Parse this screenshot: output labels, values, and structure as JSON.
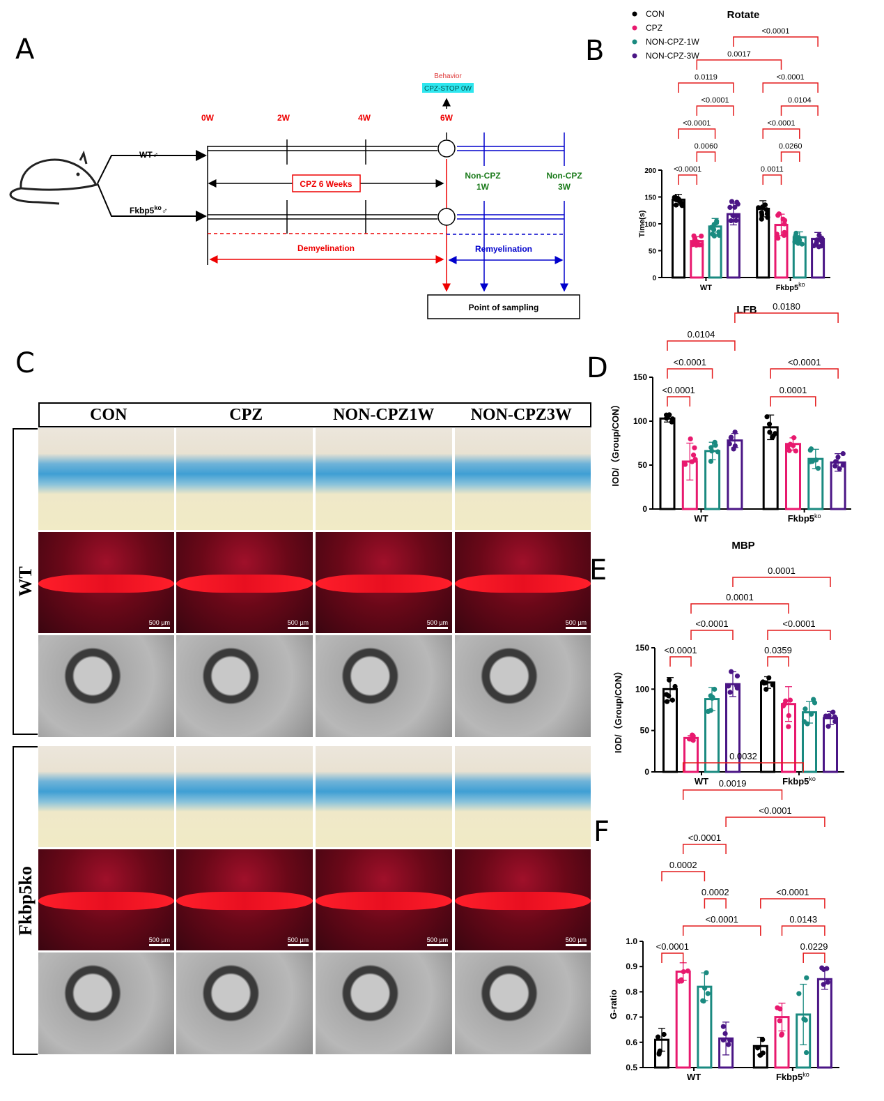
{
  "panel_letters": [
    "A",
    "B",
    "C",
    "D",
    "E",
    "F"
  ],
  "diagram_a": {
    "time_labels": [
      "0W",
      "2W",
      "4W",
      "6W"
    ],
    "behavior": "Behavior",
    "cpz_stop": "CPZ-STOP 0W",
    "group_wt": "WT♂",
    "group_ko": "Fkbp5",
    "group_ko_sup": "ko",
    "group_ko_sym": "♂",
    "cpz_box": "CPZ 6 Weeks",
    "non_cpz_1w": [
      "Non-CPZ",
      "1W"
    ],
    "non_cpz_3w": [
      "Non-CPZ",
      "3W"
    ],
    "demyelination": "Demyelination",
    "remyelination": "Remyelination",
    "sampling": "Point of sampling"
  },
  "panel_c": {
    "columns": [
      "CON",
      "CPZ",
      "NON-CPZ1W",
      "NON-CPZ3W"
    ],
    "rows": [
      "WT",
      "Fkbp5ko"
    ],
    "scale_bar": "500 µm"
  },
  "legend": {
    "items": [
      {
        "label": "CON",
        "color": "#000000"
      },
      {
        "label": "CPZ",
        "color": "#e8196e"
      },
      {
        "label": "NON-CPZ-1W",
        "color": "#1a8a80"
      },
      {
        "label": "NON-CPZ-3W",
        "color": "#4a1585"
      }
    ]
  },
  "chart_data": [
    {
      "type": "bar",
      "title": "Rotate",
      "ylabel": "Time(s)",
      "ylim": [
        0,
        200
      ],
      "yticks": [
        0,
        50,
        100,
        150,
        200
      ],
      "categories": [
        "WT",
        "Fkbp5ko"
      ],
      "category_sup": [
        "",
        "ko"
      ],
      "means": [
        145,
        68,
        95,
        118,
        128,
        98,
        75,
        72
      ],
      "sd": [
        10,
        8,
        15,
        20,
        15,
        20,
        10,
        12
      ],
      "n": 10,
      "comparisons": [
        {
          "a": 0,
          "b": 1,
          "p": "<0.0001"
        },
        {
          "a": 4,
          "b": 5,
          "p": "0.0011"
        },
        {
          "a": 1,
          "b": 2,
          "p": "0.0060"
        },
        {
          "a": 5,
          "b": 6,
          "p": "0.0260"
        },
        {
          "a": 0,
          "b": 2,
          "p": "<0.0001"
        },
        {
          "a": 4,
          "b": 6,
          "p": "<0.0001"
        },
        {
          "a": 1,
          "b": 3,
          "p": "<0.0001"
        },
        {
          "a": 5,
          "b": 7,
          "p": "0.0104"
        },
        {
          "a": 0,
          "b": 3,
          "p": "0.0119"
        },
        {
          "a": 4,
          "b": 7,
          "p": "<0.0001"
        },
        {
          "a": 1,
          "b": 5,
          "p": "0.0017"
        },
        {
          "a": 3,
          "b": 7,
          "p": "<0.0001"
        }
      ]
    },
    {
      "type": "bar",
      "title": "LFB",
      "ylabel": "IOD/（Group/CON）",
      "ylim": [
        0,
        150
      ],
      "yticks": [
        0,
        50,
        100,
        150
      ],
      "categories": [
        "WT",
        "Fkbp5ko"
      ],
      "category_sup": [
        "",
        "ko"
      ],
      "means": [
        103,
        54,
        66,
        78,
        93,
        74,
        57,
        53
      ],
      "sd": [
        4,
        21,
        10,
        8,
        14,
        7,
        11,
        10
      ],
      "n": 6,
      "comparisons": [
        {
          "a": 0,
          "b": 1,
          "p": "<0.0001"
        },
        {
          "a": 4,
          "b": 6,
          "p": "0.0001"
        },
        {
          "a": 0,
          "b": 2,
          "p": "<0.0001"
        },
        {
          "a": 4,
          "b": 7,
          "p": "<0.0001"
        },
        {
          "a": 0,
          "b": 3,
          "p": "0.0104"
        },
        {
          "a": 3,
          "b": 7,
          "p": "0.0180"
        }
      ]
    },
    {
      "type": "bar",
      "title": "MBP",
      "ylabel": "IOD/（Group/CON）",
      "ylim": [
        0,
        150
      ],
      "yticks": [
        0,
        50,
        100,
        150
      ],
      "categories": [
        "WT",
        "Fkbp5ko"
      ],
      "category_sup": [
        "",
        "ko"
      ],
      "means": [
        100,
        41,
        88,
        106,
        108,
        82,
        72,
        65
      ],
      "sd": [
        14,
        3,
        14,
        15,
        7,
        21,
        13,
        8
      ],
      "n": 6,
      "comparisons": [
        {
          "a": 0,
          "b": 1,
          "p": "<0.0001"
        },
        {
          "a": 4,
          "b": 5,
          "p": "0.0359"
        },
        {
          "a": 1,
          "b": 3,
          "p": "<0.0001"
        },
        {
          "a": 4,
          "b": 7,
          "p": "<0.0001"
        },
        {
          "a": 1,
          "b": 5,
          "p": "0.0001"
        },
        {
          "a": 3,
          "b": 7,
          "p": "0.0001"
        }
      ]
    },
    {
      "type": "bar",
      "title": "",
      "ylabel": "G-ratio",
      "ylim": [
        0.5,
        1.0
      ],
      "yticks": [
        0.5,
        0.6,
        0.7,
        0.8,
        0.9,
        1.0
      ],
      "categories": [
        "WT",
        "Fkbp5ko"
      ],
      "category_sup": [
        "",
        "ko"
      ],
      "means": [
        0.61,
        0.88,
        0.82,
        0.615,
        0.585,
        0.7,
        0.71,
        0.85
      ],
      "sd": [
        0.045,
        0.035,
        0.055,
        0.065,
        0.035,
        0.055,
        0.12,
        0.04
      ],
      "n": 5,
      "comparisons": [
        {
          "a": 0,
          "b": 1,
          "p": "<0.0001"
        },
        {
          "a": 1,
          "b": 4,
          "p": "<0.0001"
        },
        {
          "a": 6,
          "b": 7,
          "p": "0.0229"
        },
        {
          "a": 2,
          "b": 3,
          "p": "0.0002"
        },
        {
          "a": 5,
          "b": 7,
          "p": "0.0143"
        },
        {
          "a": 0,
          "b": 2,
          "p": "0.0002"
        },
        {
          "a": 4,
          "b": 7,
          "p": "<0.0001"
        },
        {
          "a": 1,
          "b": 3,
          "p": "<0.0001"
        },
        {
          "a": 3,
          "b": 7,
          "p": "<0.0001"
        },
        {
          "a": 1,
          "b": 5,
          "p": "0.0019"
        },
        {
          "a": 1,
          "b": 6,
          "p": "0.0032"
        }
      ]
    }
  ]
}
